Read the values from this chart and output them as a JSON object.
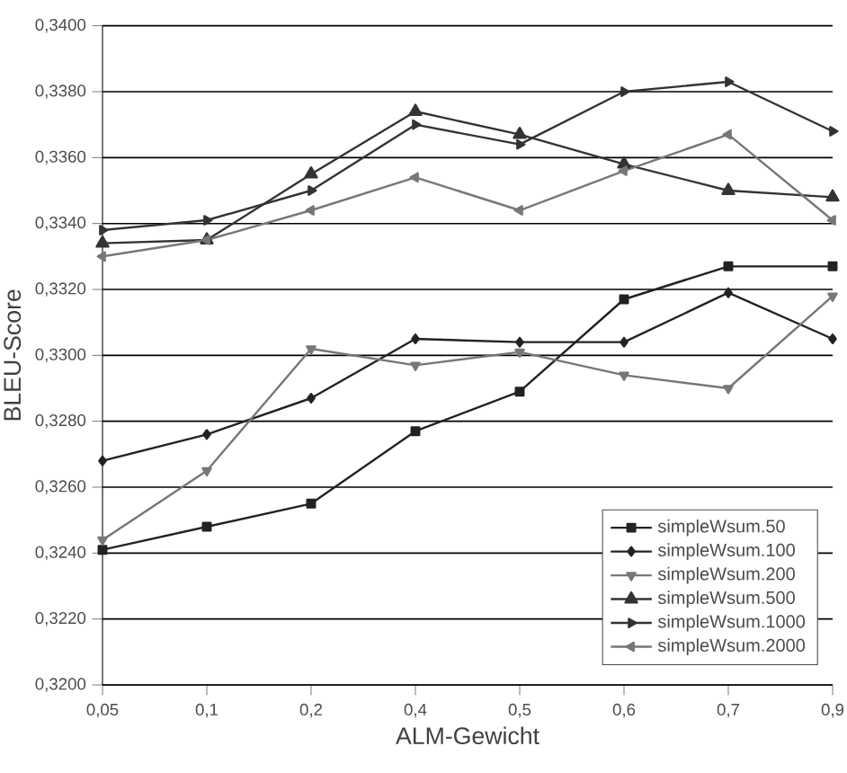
{
  "chart_data": {
    "type": "line",
    "xlabel": "ALM-Gewicht",
    "ylabel": "BLEU-Score",
    "categories": [
      "0,05",
      "0,1",
      "0,2",
      "0,4",
      "0,5",
      "0,6",
      "0,7",
      "0,9"
    ],
    "ylim": [
      0.32,
      0.34
    ],
    "yticks": [
      {
        "value": 0.32,
        "label": "0,3200"
      },
      {
        "value": 0.322,
        "label": "0,3220"
      },
      {
        "value": 0.324,
        "label": "0,3240"
      },
      {
        "value": 0.326,
        "label": "0,3260"
      },
      {
        "value": 0.328,
        "label": "0,3280"
      },
      {
        "value": 0.33,
        "label": "0,3300"
      },
      {
        "value": 0.332,
        "label": "0,3320"
      },
      {
        "value": 0.334,
        "label": "0,3340"
      },
      {
        "value": 0.336,
        "label": "0,3360"
      },
      {
        "value": 0.338,
        "label": "0,3380"
      },
      {
        "value": 0.34,
        "label": "0,3400"
      }
    ],
    "grid": "y",
    "legend": "bottom right",
    "series": [
      {
        "name": "simpleWsum.50",
        "color": "#222222",
        "marker": "square",
        "values": [
          0.3241,
          0.3248,
          0.3255,
          0.3277,
          0.3289,
          0.3317,
          0.3327,
          0.3327
        ]
      },
      {
        "name": "simpleWsum.100",
        "color": "#222222",
        "marker": "diamond",
        "values": [
          0.3268,
          0.3276,
          0.3287,
          0.3305,
          0.3304,
          0.3304,
          0.3319,
          0.3305
        ]
      },
      {
        "name": "simpleWsum.200",
        "color": "#777777",
        "marker": "triangle-down",
        "values": [
          0.3244,
          0.3265,
          0.3302,
          0.3297,
          0.3301,
          0.3294,
          0.329,
          0.3318
        ]
      },
      {
        "name": "simpleWsum.500",
        "color": "#333333",
        "marker": "triangle",
        "values": [
          0.3334,
          0.3335,
          0.3355,
          0.3374,
          0.3367,
          0.3358,
          0.335,
          0.3348
        ]
      },
      {
        "name": "simpleWsum.1000",
        "color": "#333333",
        "marker": "triangle-right",
        "values": [
          0.3338,
          0.3341,
          0.335,
          0.337,
          0.3364,
          0.338,
          0.3383,
          0.3368
        ]
      },
      {
        "name": "simpleWsum.2000",
        "color": "#777777",
        "marker": "triangle-left",
        "values": [
          0.333,
          0.3335,
          0.3344,
          0.3354,
          0.3344,
          0.3356,
          0.3367,
          0.3341
        ]
      }
    ]
  }
}
